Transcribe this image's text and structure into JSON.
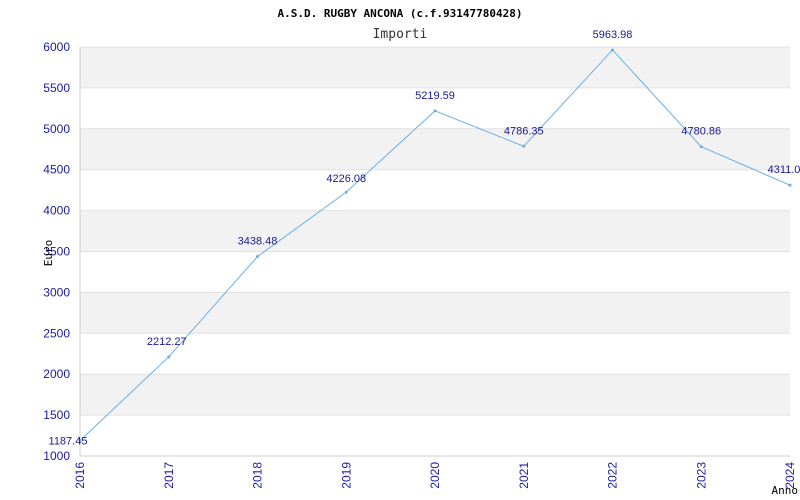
{
  "chart_data": {
    "type": "line",
    "title": "A.S.D. RUGBY ANCONA (c.f.93147780428)",
    "subtitle": "Importi",
    "xlabel": "Anno",
    "ylabel": "Euro",
    "x": [
      "2016",
      "2017",
      "2018",
      "2019",
      "2020",
      "2021",
      "2022",
      "2023",
      "2024"
    ],
    "values": [
      1187.45,
      2212.27,
      3438.48,
      4226.08,
      5219.59,
      4786.35,
      5963.98,
      4780.86,
      4311.0
    ],
    "value_labels": [
      "1187.45",
      "2212.27",
      "3438.48",
      "4226.08",
      "5219.59",
      "4786.35",
      "5963.98",
      "4780.86",
      "4311.0"
    ],
    "yticks": [
      1000,
      1500,
      2000,
      2500,
      3000,
      3500,
      4000,
      4500,
      5000,
      5500,
      6000
    ],
    "ylim": [
      1000,
      6000
    ],
    "grid": true,
    "colors": {
      "line": "#6aaee8",
      "band": "#f2f2f2",
      "tick": "#1a1aa6",
      "label": "#1a1a8c",
      "grid": "#e0e0e0"
    }
  }
}
